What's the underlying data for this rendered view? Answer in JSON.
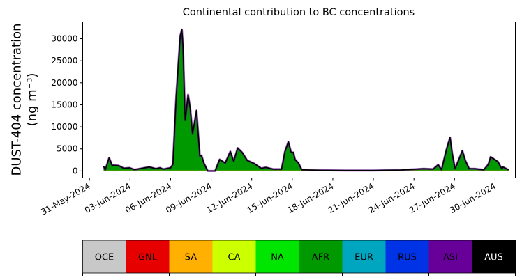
{
  "chart_data": {
    "type": "area",
    "stacked": true,
    "title": "Continental contribution to BC concentrations",
    "ylabel_line1": "DUST-404 concentration",
    "ylabel_line2": "(ng m⁻³)",
    "xlabel": "",
    "ylim": [
      -1600,
      33800
    ],
    "xlim": [
      "2024-05-30 12:00",
      "2024-07-01 12:00"
    ],
    "yticks": [
      0,
      5000,
      10000,
      15000,
      20000,
      25000,
      30000
    ],
    "ytick_labels": [
      "0",
      "5000",
      "10000",
      "15000",
      "20000",
      "25000",
      "30000"
    ],
    "xticks": [
      "2024-05-31",
      "2024-06-03",
      "2024-06-06",
      "2024-06-09",
      "2024-06-12",
      "2024-06-15",
      "2024-06-18",
      "2024-06-21",
      "2024-06-24",
      "2024-06-27",
      "2024-06-30"
    ],
    "xtick_labels": [
      "31-May-2024",
      "03-Jun-2024",
      "06-Jun-2024",
      "09-Jun-2024",
      "12-Jun-2024",
      "15-Jun-2024",
      "18-Jun-2024",
      "21-Jun-2024",
      "24-Jun-2024",
      "27-Jun-2024",
      "30-Jun-2024"
    ],
    "grid": false,
    "total_line_color": "#000000",
    "x": [
      "2024-06-01 01:00",
      "2024-06-01 04:00",
      "2024-06-01 11:00",
      "2024-06-01 16:00",
      "2024-06-02 04:00",
      "2024-06-02 13:00",
      "2024-06-02 23:00",
      "2024-06-03 08:00",
      "2024-06-03 17:00",
      "2024-06-04 10:00",
      "2024-06-04 22:00",
      "2024-06-05 05:00",
      "2024-06-05 11:00",
      "2024-06-06 00:00",
      "2024-06-06 04:00",
      "2024-06-06 10:00",
      "2024-06-06 17:00",
      "2024-06-06 20:00",
      "2024-06-06 22:00",
      "2024-06-07 02:00",
      "2024-06-07 07:00",
      "2024-06-07 11:00",
      "2024-06-07 15:00",
      "2024-06-07 22:00",
      "2024-06-08 04:00",
      "2024-06-08 07:00",
      "2024-06-08 11:00",
      "2024-06-08 18:00",
      "2024-06-09 07:00",
      "2024-06-09 15:00",
      "2024-06-10 01:00",
      "2024-06-10 10:00",
      "2024-06-10 16:00",
      "2024-06-10 23:00",
      "2024-06-11 07:00",
      "2024-06-11 16:00",
      "2024-06-12 04:00",
      "2024-06-12 17:00",
      "2024-06-13 01:00",
      "2024-06-13 14:00",
      "2024-06-14 05:00",
      "2024-06-14 11:00",
      "2024-06-14 17:00",
      "2024-06-14 22:00",
      "2024-06-15 02:00",
      "2024-06-15 05:00",
      "2024-06-15 11:00",
      "2024-06-15 17:00",
      "2024-06-15 22:00",
      "2024-06-17 00:00",
      "2024-06-19 00:00",
      "2024-06-21 00:00",
      "2024-06-23 00:00",
      "2024-06-24 17:00",
      "2024-06-25 10:00",
      "2024-06-25 19:00",
      "2024-06-26 01:00",
      "2024-06-26 10:00",
      "2024-06-26 16:00",
      "2024-06-26 20:00",
      "2024-06-27 01:00",
      "2024-06-27 07:00",
      "2024-06-27 14:00",
      "2024-06-27 19:00",
      "2024-06-28 02:00",
      "2024-06-28 12:00",
      "2024-06-29 04:00",
      "2024-06-29 12:00",
      "2024-06-29 16:00",
      "2024-06-30 05:00",
      "2024-06-30 12:00",
      "2024-06-30 14:00",
      "2024-07-01 00:00"
    ],
    "series": [
      {
        "name": "AFR",
        "color": "#009900",
        "values": [
          1100,
          250,
          3000,
          1300,
          1200,
          600,
          700,
          300,
          500,
          900,
          500,
          700,
          400,
          700,
          1500,
          17000,
          30600,
          32100,
          28500,
          11500,
          17300,
          14100,
          8400,
          13700,
          3400,
          3500,
          1800,
          0,
          0,
          2600,
          1800,
          4400,
          2200,
          5200,
          4200,
          2400,
          1700,
          600,
          800,
          400,
          400,
          4400,
          6600,
          4200,
          4200,
          2600,
          1800,
          250,
          250,
          150,
          100,
          100,
          200,
          500,
          400,
          1400,
          300,
          5000,
          7600,
          3900,
          500,
          2400,
          4600,
          2400,
          500,
          500,
          250,
          1500,
          3200,
          2100,
          500,
          900,
          250
        ]
      }
    ],
    "legend": {
      "placement": "bottom colorbar",
      "entries": [
        {
          "label": "OCE",
          "color": "#c8c8c8"
        },
        {
          "label": "GNL",
          "color": "#e60000"
        },
        {
          "label": "SA",
          "color": "#ffb000"
        },
        {
          "label": "CA",
          "color": "#ccff00"
        },
        {
          "label": "NA",
          "color": "#00e600"
        },
        {
          "label": "AFR",
          "color": "#009900"
        },
        {
          "label": "EUR",
          "color": "#00a5bf"
        },
        {
          "label": "RUS",
          "color": "#0033e6"
        },
        {
          "label": "ASI",
          "color": "#660099"
        },
        {
          "label": "AUS",
          "color": "#000000"
        }
      ]
    }
  }
}
